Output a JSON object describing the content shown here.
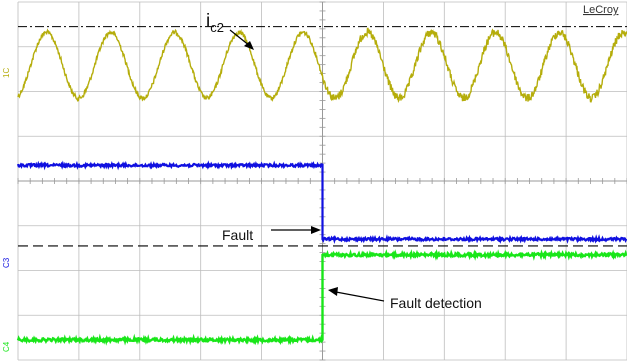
{
  "brand": "LeCroy",
  "channel_labels": {
    "c1": "1C",
    "c3": "C3",
    "c4": "C4"
  },
  "colors": {
    "c1": "#b5ad0b",
    "c3": "#1010e0",
    "c4": "#19e619",
    "grid": "#bdbdbd",
    "refline": "#000000"
  },
  "annotations": {
    "ic2_main": "i",
    "ic2_sub": "c2",
    "fault": "Fault",
    "fault_detection": "Fault detection"
  },
  "chart_data": {
    "type": "line",
    "grid": true,
    "x_divisions": 10,
    "y_divisions": 8,
    "xlim": [
      0,
      10
    ],
    "ylim": [
      0,
      8
    ],
    "series": [
      {
        "id": "c1",
        "periods_visible": 9.5,
        "peak_div": 0.68,
        "trough_div": 2.15
      },
      {
        "id": "c3",
        "before": 3.65,
        "after": 5.3,
        "step_at": 5.0
      },
      {
        "id": "c4",
        "before": 7.55,
        "after": 5.65,
        "step_at": 5.0
      }
    ],
    "reference_lines": [
      {
        "style": "dash-dot",
        "y": 0.55
      },
      {
        "style": "dashed",
        "y": 5.45
      }
    ]
  }
}
